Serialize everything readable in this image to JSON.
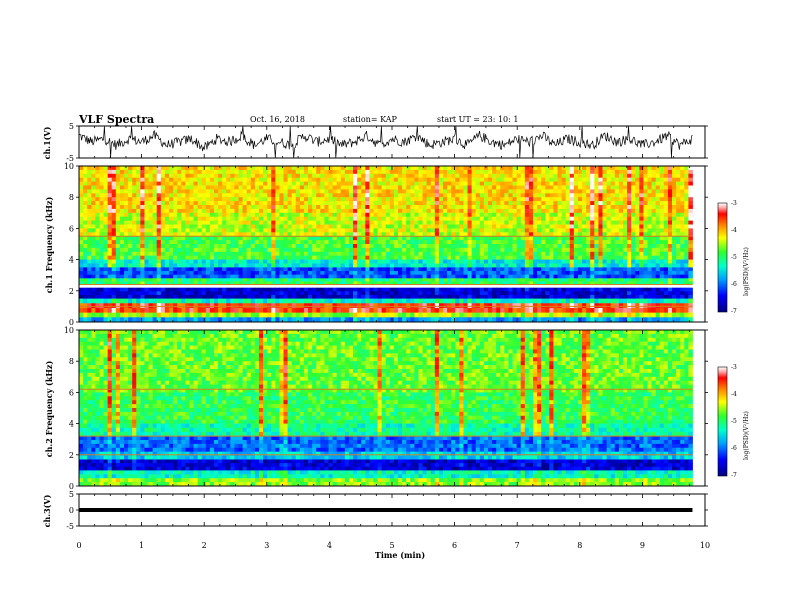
{
  "header": {
    "title": "VLF Spectra",
    "date": "Oct. 16, 2018",
    "station": "station= KAP",
    "start": "start  UT =  23: 10: 1"
  },
  "chart_data": [
    {
      "panel": "ch1_waveform",
      "type": "line",
      "ylabel": "ch.1(V)",
      "ylim": [
        -5,
        5
      ],
      "yticks": [
        "5",
        "-5"
      ],
      "x": [
        0,
        0.2,
        0.4,
        0.6,
        0.8,
        1.0,
        1.2,
        1.4,
        1.6,
        1.8,
        2.0,
        2.2,
        2.4,
        2.6,
        2.8,
        3.0,
        3.2,
        3.4,
        3.6,
        3.8,
        4.0,
        4.2,
        4.4,
        4.6,
        4.8,
        5.0,
        5.2,
        5.4,
        5.6,
        5.8,
        6.0,
        6.2,
        6.4,
        6.6,
        6.8,
        7.0,
        7.2,
        7.4,
        7.6,
        7.8,
        8.0,
        8.2,
        8.4,
        8.6,
        8.8,
        9.0,
        9.2,
        9.4,
        9.6,
        9.8
      ],
      "y": [
        2,
        0,
        1,
        -1,
        1,
        0,
        2,
        -1,
        0,
        1,
        -2,
        1,
        0,
        2,
        -1,
        1,
        0,
        -1,
        2,
        0,
        1,
        -1,
        0,
        2,
        -1,
        1,
        0,
        2,
        -1,
        0,
        1,
        -1,
        2,
        0,
        -1,
        1,
        0,
        2,
        -1,
        1,
        0,
        -1,
        2,
        0,
        1,
        -1,
        0,
        2,
        -1,
        1
      ]
    },
    {
      "panel": "ch1_spectrogram",
      "type": "heatmap",
      "ylabel": "ch.1 Frequency (kHz)",
      "ylim": [
        0,
        10
      ],
      "yticks": [
        "0",
        "2",
        "4",
        "6",
        "8",
        "10"
      ],
      "colorbar": {
        "label": "log(PSD)(V²/Hz)",
        "range": [
          -7,
          -3
        ],
        "ticks": [
          "-3",
          "-4",
          "-5",
          "-6",
          "-7"
        ]
      },
      "bands": [
        {
          "from": 7.0,
          "to": 10.0,
          "level": -4.2
        },
        {
          "from": 5.5,
          "to": 7.0,
          "level": -4.4
        },
        {
          "from": 4.0,
          "to": 5.5,
          "level": -4.8
        },
        {
          "from": 3.5,
          "to": 4.0,
          "level": -5.4
        },
        {
          "from": 2.8,
          "to": 3.5,
          "level": -6.1
        },
        {
          "from": 2.4,
          "to": 2.8,
          "level": -5.0
        },
        {
          "from": 1.5,
          "to": 2.2,
          "level": -6.6
        },
        {
          "from": 1.2,
          "to": 1.5,
          "level": -5.3
        },
        {
          "from": 0.6,
          "to": 1.2,
          "level": -3.5
        },
        {
          "from": 0.3,
          "to": 0.6,
          "level": -4.5
        },
        {
          "from": 0.0,
          "to": 0.3,
          "level": -5.8
        }
      ],
      "lines_kHz": [
        5.5,
        2.4,
        1.0
      ]
    },
    {
      "panel": "ch2_spectrogram",
      "type": "heatmap",
      "ylabel": "ch.2 Frequency (kHz)",
      "ylim": [
        0,
        10
      ],
      "yticks": [
        "0",
        "2",
        "4",
        "6",
        "8",
        "10"
      ],
      "colorbar": {
        "label": "log(PSD)(V²/Hz)",
        "range": [
          -7,
          -3
        ],
        "ticks": [
          "-3",
          "-4",
          "-5",
          "-6",
          "-7"
        ]
      },
      "bands": [
        {
          "from": 6.0,
          "to": 10.0,
          "level": -4.7
        },
        {
          "from": 4.0,
          "to": 6.0,
          "level": -4.9
        },
        {
          "from": 3.2,
          "to": 4.0,
          "level": -5.2
        },
        {
          "from": 2.2,
          "to": 3.2,
          "level": -6.0
        },
        {
          "from": 1.7,
          "to": 2.2,
          "level": -5.6
        },
        {
          "from": 1.0,
          "to": 1.7,
          "level": -6.6
        },
        {
          "from": 0.5,
          "to": 1.0,
          "level": -5.3
        },
        {
          "from": 0.0,
          "to": 0.5,
          "level": -4.6
        }
      ],
      "lines_kHz": [
        6.2,
        3.2,
        2.0
      ]
    },
    {
      "panel": "ch3_waveform",
      "type": "line",
      "ylabel": "ch.3(V)",
      "ylim": [
        -5,
        5
      ],
      "yticks": [
        "5",
        "0",
        "-5"
      ],
      "x": [
        0,
        9.8
      ],
      "y": [
        0,
        0
      ]
    }
  ],
  "xaxis": {
    "label": "Time (min)",
    "range": [
      0,
      10
    ],
    "ticks": [
      "0",
      "1",
      "2",
      "3",
      "4",
      "5",
      "6",
      "7",
      "8",
      "9",
      "10"
    ]
  }
}
